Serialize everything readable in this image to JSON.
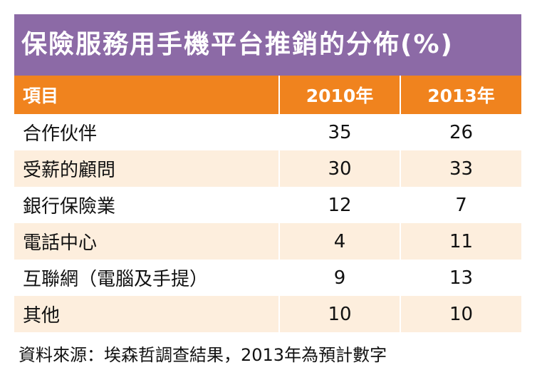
{
  "chart_data": {
    "type": "table",
    "title": "保險服務用手機平台推銷的分佈(%)",
    "columns": [
      "項目",
      "2010年",
      "2013年"
    ],
    "rows": [
      {
        "label": "合作伙伴",
        "values": [
          "35",
          "26"
        ]
      },
      {
        "label": "受薪的顧問",
        "values": [
          "30",
          "33"
        ]
      },
      {
        "label": "銀行保險業",
        "values": [
          "12",
          "7"
        ]
      },
      {
        "label": "電話中心",
        "values": [
          "4",
          "11"
        ]
      },
      {
        "label": "互聯網（電腦及手提）",
        "values": [
          "9",
          "13"
        ]
      },
      {
        "label": "其他",
        "values": [
          "10",
          "10"
        ]
      }
    ],
    "source": "資料來源：埃森哲調查結果，2013年為預計數字"
  },
  "colors": {
    "title_bg": "#8c6aa6",
    "header_bg": "#f0831e",
    "row_alt_bg": "#fdeedd"
  }
}
